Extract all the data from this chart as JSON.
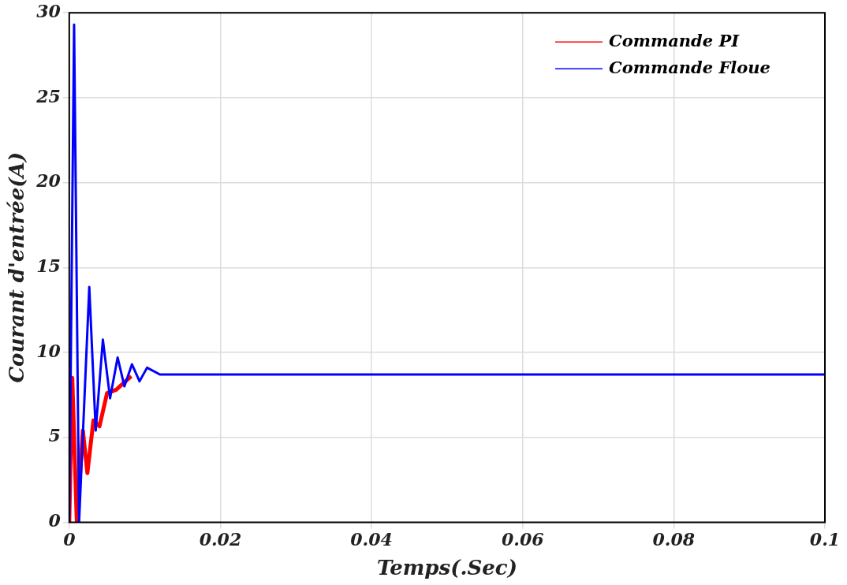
{
  "chart_data": {
    "type": "line",
    "xlabel": "Temps(.Sec)",
    "ylabel": "Courant d'entrée(A)",
    "xlim": [
      0,
      0.1
    ],
    "ylim": [
      0,
      30
    ],
    "xticks": [
      0,
      0.02,
      0.04,
      0.06,
      0.08,
      0.1
    ],
    "yticks": [
      0,
      5,
      10,
      15,
      20,
      25,
      30
    ],
    "grid": true,
    "legend": "top right",
    "marker": "none",
    "line_style": "solid",
    "series": [
      {
        "name": "Commande PI",
        "color": "#ff0000",
        "x": [
          0,
          0.0004,
          0.001,
          0.0018,
          0.0024,
          0.0032,
          0.004,
          0.005,
          0.0062,
          0.0082
        ],
        "values": [
          0,
          8.5,
          0,
          5.4,
          2.9,
          6.0,
          5.65,
          7.6,
          7.8,
          8.6
        ]
      },
      {
        "name": "Commande Floue",
        "color": "#0000ff",
        "x": [
          0,
          0.00064,
          0.0013,
          0.00265,
          0.0035,
          0.00445,
          0.0054,
          0.0064,
          0.0073,
          0.0083,
          0.0093,
          0.0103,
          0.012,
          0.02,
          0.04,
          0.06,
          0.08,
          0.1
        ],
        "values": [
          0,
          29.3,
          0,
          13.85,
          5.4,
          10.75,
          7.3,
          9.7,
          8.0,
          9.3,
          8.3,
          9.1,
          8.7,
          8.7,
          8.7,
          8.7,
          8.7,
          8.7
        ]
      }
    ]
  }
}
